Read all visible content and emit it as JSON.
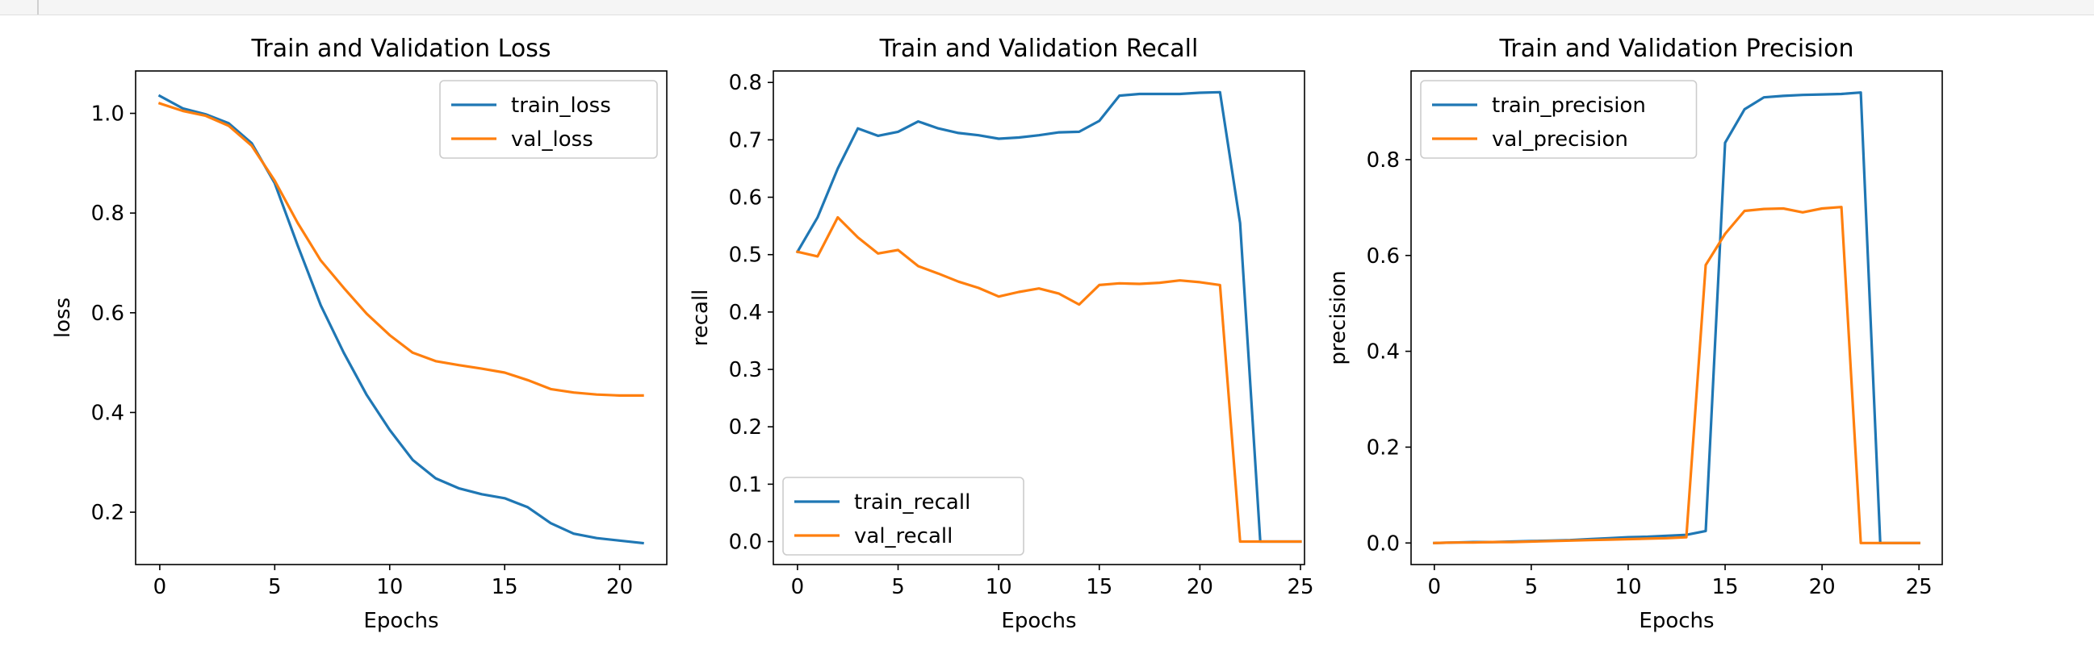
{
  "chart_data": [
    {
      "type": "line",
      "title": "Train and Validation Loss",
      "xlabel": "Epochs",
      "ylabel": "loss",
      "xlim": [
        -1.05,
        22.05
      ],
      "ylim": [
        0.095,
        1.085
      ],
      "xticks": [
        0,
        5,
        10,
        15,
        20
      ],
      "yticks": [
        0.2,
        0.4,
        0.6,
        0.8,
        1.0
      ],
      "xtick_labels": [
        "0",
        "5",
        "10",
        "15",
        "20"
      ],
      "ytick_labels": [
        "0.2",
        "0.4",
        "0.6",
        "0.8",
        "1.0"
      ],
      "legend_position": "top-right",
      "grid": false,
      "series": [
        {
          "name": "train_loss",
          "color": "#1f77b4",
          "x": [
            0,
            1,
            2,
            3,
            4,
            5,
            6,
            7,
            8,
            9,
            10,
            11,
            12,
            13,
            14,
            15,
            16,
            17,
            18,
            19,
            20,
            21
          ],
          "y": [
            1.035,
            1.01,
            0.998,
            0.98,
            0.94,
            0.86,
            0.735,
            0.615,
            0.52,
            0.435,
            0.365,
            0.305,
            0.268,
            0.248,
            0.236,
            0.228,
            0.21,
            0.178,
            0.157,
            0.148,
            0.143,
            0.138
          ]
        },
        {
          "name": "val_loss",
          "color": "#ff7f0e",
          "x": [
            0,
            1,
            2,
            3,
            4,
            5,
            6,
            7,
            8,
            9,
            10,
            11,
            12,
            13,
            14,
            15,
            16,
            17,
            18,
            19,
            20,
            21
          ],
          "y": [
            1.02,
            1.005,
            0.995,
            0.975,
            0.935,
            0.865,
            0.78,
            0.705,
            0.65,
            0.598,
            0.555,
            0.52,
            0.503,
            0.495,
            0.488,
            0.48,
            0.465,
            0.447,
            0.44,
            0.436,
            0.434,
            0.434
          ]
        }
      ]
    },
    {
      "type": "line",
      "title": "Train and Validation Recall",
      "xlabel": "Epochs",
      "ylabel": "recall",
      "xlim": [
        -1.2,
        25.2
      ],
      "ylim": [
        -0.04,
        0.82
      ],
      "xticks": [
        0,
        5,
        10,
        15,
        20,
        25
      ],
      "yticks": [
        0.0,
        0.1,
        0.2,
        0.3,
        0.4,
        0.5,
        0.6,
        0.7,
        0.8
      ],
      "xtick_labels": [
        "0",
        "5",
        "10",
        "15",
        "20",
        "25"
      ],
      "ytick_labels": [
        "0.0",
        "0.1",
        "0.2",
        "0.3",
        "0.4",
        "0.5",
        "0.6",
        "0.7",
        "0.8"
      ],
      "legend_position": "bottom-left",
      "grid": false,
      "series": [
        {
          "name": "train_recall",
          "color": "#1f77b4",
          "x": [
            0,
            1,
            2,
            3,
            4,
            5,
            6,
            7,
            8,
            9,
            10,
            11,
            12,
            13,
            14,
            15,
            16,
            17,
            18,
            19,
            20,
            21,
            22,
            23,
            24,
            25
          ],
          "y": [
            0.505,
            0.565,
            0.65,
            0.72,
            0.707,
            0.714,
            0.732,
            0.72,
            0.712,
            0.708,
            0.702,
            0.704,
            0.708,
            0.713,
            0.714,
            0.733,
            0.777,
            0.78,
            0.78,
            0.78,
            0.782,
            0.783,
            0.555,
            0.0,
            0.0,
            0.0
          ]
        },
        {
          "name": "val_recall",
          "color": "#ff7f0e",
          "x": [
            0,
            1,
            2,
            3,
            4,
            5,
            6,
            7,
            8,
            9,
            10,
            11,
            12,
            13,
            14,
            15,
            16,
            17,
            18,
            19,
            20,
            21,
            22,
            23,
            24,
            25
          ],
          "y": [
            0.505,
            0.497,
            0.565,
            0.53,
            0.502,
            0.508,
            0.48,
            0.467,
            0.453,
            0.442,
            0.427,
            0.435,
            0.441,
            0.432,
            0.413,
            0.447,
            0.45,
            0.449,
            0.451,
            0.455,
            0.452,
            0.447,
            0.0,
            0.0,
            0.0,
            0.0
          ]
        }
      ]
    },
    {
      "type": "line",
      "title": "Train and Validation Precision",
      "xlabel": "Epochs",
      "ylabel": "precision",
      "xlim": [
        -1.2,
        26.2
      ],
      "ylim": [
        -0.045,
        0.985
      ],
      "xticks": [
        0,
        5,
        10,
        15,
        20,
        25
      ],
      "yticks": [
        0.0,
        0.2,
        0.4,
        0.6,
        0.8
      ],
      "xtick_labels": [
        "0",
        "5",
        "10",
        "15",
        "20",
        "25"
      ],
      "ytick_labels": [
        "0.0",
        "0.2",
        "0.4",
        "0.6",
        "0.8"
      ],
      "legend_position": "top-left",
      "grid": false,
      "series": [
        {
          "name": "train_precision",
          "color": "#1f77b4",
          "x": [
            0,
            1,
            2,
            3,
            4,
            5,
            6,
            7,
            8,
            9,
            10,
            11,
            12,
            13,
            14,
            15,
            16,
            17,
            18,
            19,
            20,
            21,
            22,
            23,
            24,
            25
          ],
          "y": [
            0.0,
            0.001,
            0.002,
            0.002,
            0.003,
            0.004,
            0.005,
            0.006,
            0.008,
            0.01,
            0.012,
            0.013,
            0.015,
            0.017,
            0.025,
            0.835,
            0.905,
            0.93,
            0.933,
            0.935,
            0.936,
            0.937,
            0.94,
            0.0,
            0.0,
            0.0
          ]
        },
        {
          "name": "val_precision",
          "color": "#ff7f0e",
          "x": [
            0,
            1,
            2,
            3,
            4,
            5,
            6,
            7,
            8,
            9,
            10,
            11,
            12,
            13,
            14,
            15,
            16,
            17,
            18,
            19,
            20,
            21,
            22,
            23,
            24,
            25
          ],
          "y": [
            0.0,
            0.001,
            0.001,
            0.002,
            0.002,
            0.003,
            0.004,
            0.005,
            0.006,
            0.007,
            0.008,
            0.009,
            0.01,
            0.012,
            0.58,
            0.645,
            0.693,
            0.697,
            0.698,
            0.69,
            0.698,
            0.701,
            0.0,
            0.0,
            0.0,
            0.0
          ]
        }
      ]
    }
  ]
}
